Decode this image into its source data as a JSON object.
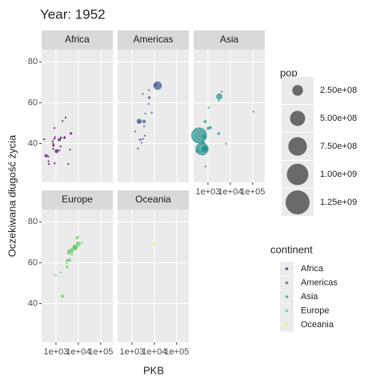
{
  "chart_data": {
    "type": "scatter",
    "title": "Year: 1952",
    "xlabel": "PKB",
    "ylabel": "Oczekiwana długość życia",
    "log_x": true,
    "grid": true,
    "xlim": [
      229,
      347000
    ],
    "ylim": [
      21,
      86
    ],
    "xticks": [
      {
        "value": 1000,
        "label": "1e+03"
      },
      {
        "value": 10000,
        "label": "1e+04"
      },
      {
        "value": 100000,
        "label": "1e+05"
      }
    ],
    "yticks": [
      40,
      60,
      80
    ],
    "alpha": 0.7,
    "size_legend": {
      "title": "pop",
      "breaks": [
        {
          "value": 250000000,
          "label": "2.50e+08"
        },
        {
          "value": 500000000,
          "label": "5.00e+08"
        },
        {
          "value": 750000000,
          "label": "7.50e+08"
        },
        {
          "value": 1000000000,
          "label": "1.00e+09"
        },
        {
          "value": 1250000000,
          "label": "1.25e+09"
        }
      ]
    },
    "color_legend_title": "continent",
    "series": [
      {
        "name": "Africa",
        "color": "#440154",
        "x": [
          1419,
          1077,
          362,
          4725,
          781,
          1688,
          2449,
          1615,
          717,
          853,
          734,
          911,
          469,
          1443,
          3521,
          4293,
          2388,
          452,
          761,
          485,
          1968,
          2719,
          299,
          851,
          880
        ],
        "values": [
          41.9,
          36.3,
          34.1,
          45,
          39.1,
          42.9,
          43.1,
          38.6,
          41.2,
          42.3,
          40,
          43.1,
          31.3,
          36.7,
          30,
          37,
          42.7,
          33.7,
          37.4,
          30,
          51,
          52.7,
          42.1,
          47.6,
          30.3
        ],
        "sizes": [
          22000000,
          33000000,
          20900000,
          14000000,
          14000000,
          9900000,
          9300000,
          8500000,
          8300000,
          6500000,
          5800000,
          5600000,
          6400000,
          4800000,
          4200000,
          420000,
          1000000,
          3800000,
          3400000,
          280000,
          500000,
          260000,
          750000,
          440000,
          2100000
        ]
      },
      {
        "name": "Americas",
        "color": "#3B528B",
        "x": [
          13990,
          11367,
          5911,
          2109,
          3478,
          3940,
          2144,
          3759,
          7690,
          2677,
          1840,
          5587,
          5717,
          2428,
          3112,
          2195,
          1398,
          3082,
          3522
        ],
        "values": [
          68.4,
          68.8,
          62.5,
          50.9,
          50.8,
          54.7,
          50.6,
          43.9,
          55.1,
          40.4,
          37.6,
          59.4,
          66.1,
          42,
          42.3,
          41.9,
          45.9,
          64.3,
          48.4
        ],
        "sizes": [
          157000000,
          14800000,
          17900000,
          56600000,
          30000000,
          6400000,
          12400000,
          8000000,
          5400000,
          2900000,
          3200000,
          6000000,
          2250000,
          3100000,
          1200000,
          1500000,
          2500000,
          2200000,
          3500000
        ]
      },
      {
        "name": "Asia",
        "color": "#21908C",
        "x": [
          400,
          547,
          3217,
          750,
          685,
          684,
          108382,
          4087,
          3035,
          1273,
          757,
          1031,
          605,
          331,
          779,
          6459,
          3054,
          1083,
          546
        ],
        "values": [
          44,
          37.4,
          63,
          37.5,
          43.4,
          37.5,
          55.6,
          65.4,
          44.9,
          47.8,
          50.8,
          47.5,
          40.4,
          36.3,
          28.8,
          39.9,
          61,
          57.6,
          36.2
        ],
        "sizes": [
          556000000,
          372000000,
          86000000,
          82000000,
          41000000,
          46900000,
          160000,
          1600000,
          17000000,
          22000000,
          21000000,
          20900000,
          26000000,
          20000000,
          8400000,
          4000000,
          2100000,
          7980000,
          9200000
        ]
      },
      {
        "name": "Europe",
        "color": "#5DC863",
        "x": [
          9980,
          7144,
          7030,
          4931,
          3834,
          4029,
          1969,
          3144,
          3068,
          14734,
          10095,
          8942,
          8528,
          3194,
          1601,
          974,
          5264,
          3531
        ],
        "values": [
          69.2,
          67.5,
          67.4,
          65.9,
          64.9,
          61.3,
          43.6,
          61,
          59.8,
          69.6,
          72.7,
          72.1,
          71.9,
          58,
          55.2,
          53.8,
          64,
          65.9
        ],
        "sizes": [
          50000000,
          69000000,
          42000000,
          47700000,
          28500000,
          25700000,
          22000000,
          16600000,
          8500000,
          4800000,
          3300000,
          10400000,
          7100000,
          15900000,
          1300000,
          2800000,
          9500000,
          7700000
        ]
      },
      {
        "name": "Oceania",
        "color": "#FDE725",
        "x": [
          10040,
          10557
        ],
        "values": [
          69.1,
          69.4
        ],
        "sizes": [
          8700000,
          1990000
        ]
      }
    ]
  }
}
